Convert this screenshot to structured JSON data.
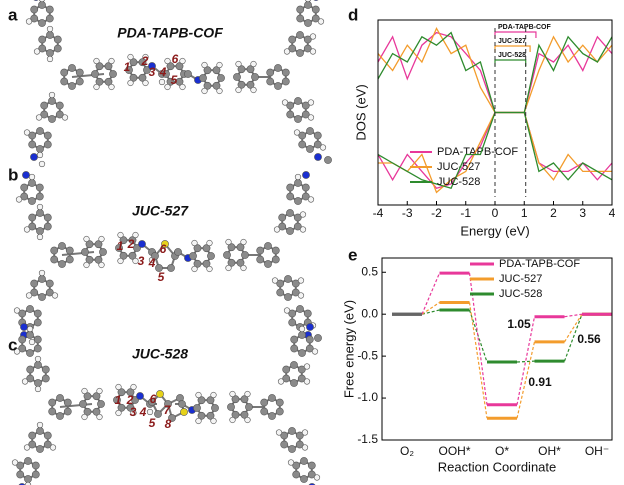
{
  "panels": [
    {
      "letter": "a",
      "title": "PDA-TAPB-COF",
      "atom_labels": [
        "1",
        "2",
        "3",
        "4",
        "5",
        "6"
      ]
    },
    {
      "letter": "b",
      "title": "JUC-527",
      "atom_labels": [
        "1",
        "2",
        "3",
        "4",
        "5",
        "6"
      ]
    },
    {
      "letter": "c",
      "title": "JUC-528",
      "atom_labels": [
        "1",
        "2",
        "3",
        "4",
        "5",
        "6",
        "7",
        "8"
      ]
    }
  ],
  "chart_data": [
    {
      "type": "line",
      "panel": "d",
      "xlabel": "Energy (eV)",
      "ylabel": "DOS (eV)",
      "x": [
        -4,
        -3.5,
        -3,
        -2.5,
        -2,
        -1.5,
        -1,
        -0.5,
        0,
        0.5,
        1,
        1.5,
        2,
        2.5,
        3,
        3.5,
        4
      ],
      "xlim": [
        -4,
        4
      ],
      "xticks": [
        -4,
        -3,
        -2,
        -1,
        0,
        1,
        2,
        3,
        4
      ],
      "ylim": [
        -1.1,
        1.1
      ],
      "series": [
        {
          "name": "PDA-TAPB-COF",
          "color": "#e8389a",
          "values": [
            0.6,
            0.9,
            0.4,
            0.8,
            0.95,
            0.9,
            0.7,
            0.5,
            0,
            0,
            0,
            0.7,
            0.6,
            0.8,
            0.5,
            0.9,
            0.7
          ],
          "values_down": [
            -0.5,
            -0.8,
            -0.5,
            -0.7,
            -0.9,
            -0.85,
            -0.6,
            -0.4,
            0,
            0,
            0,
            -0.6,
            -0.7,
            -0.7,
            -0.6,
            -0.8,
            -0.6
          ]
        },
        {
          "name": "JUC-527",
          "color": "#f39c2c",
          "values": [
            0.7,
            0.5,
            0.8,
            0.6,
            1.0,
            0.7,
            0.8,
            0.3,
            0,
            0,
            0,
            0.5,
            0.9,
            0.6,
            0.8,
            0.6,
            0.8
          ],
          "values_down": [
            -0.6,
            -0.6,
            -0.7,
            -0.5,
            -0.95,
            -0.8,
            -0.7,
            -0.35,
            0,
            0,
            0,
            -0.6,
            -0.8,
            -0.5,
            -0.7,
            -0.7,
            -0.7
          ]
        },
        {
          "name": "JUC-528",
          "color": "#2e8b2e",
          "values": [
            0.4,
            0.7,
            0.6,
            0.9,
            0.8,
            0.95,
            0.5,
            0.6,
            0,
            0,
            0,
            0.8,
            0.5,
            0.9,
            0.7,
            0.6,
            0.9
          ],
          "values_down": [
            -0.5,
            -0.6,
            -0.7,
            -0.8,
            -0.85,
            -0.9,
            -0.5,
            -0.5,
            0,
            0,
            0,
            -0.7,
            -0.6,
            -0.8,
            -0.6,
            -0.7,
            -0.8
          ]
        }
      ],
      "gap_annotations": [
        {
          "label": "PDA-TAPB-COF",
          "start": 0,
          "end": 1.4,
          "color": "#e8389a"
        },
        {
          "label": "JUC-527",
          "start": 0,
          "end": 1.2,
          "color": "#f39c2c"
        },
        {
          "label": "JUC-528",
          "start": 0,
          "end": 1.05,
          "color": "#2e8b2e"
        }
      ]
    },
    {
      "type": "energy_profile",
      "panel": "e",
      "xlabel": "Reaction Coordinate",
      "ylabel": "Free energy (eV)",
      "categories": [
        "O₂",
        "OOH*",
        "O*",
        "OH*",
        "OH⁻"
      ],
      "ylim": [
        -1.5,
        0.67
      ],
      "yticks": [
        0.5,
        {
          "value": 0,
          "label": "0.0"
        },
        -0.5,
        {
          "value": -1,
          "label": "-1.0"
        },
        -1.5
      ],
      "series": [
        {
          "name": "PDA-TAPB-COF",
          "color": "#e8389a",
          "values": [
            0,
            0.49,
            -1.08,
            -0.03,
            0
          ]
        },
        {
          "name": "JUC-527",
          "color": "#f39c2c",
          "values": [
            0,
            0.14,
            -1.24,
            -0.33,
            0
          ]
        },
        {
          "name": "JUC-528",
          "color": "#2e8b2e",
          "values": [
            0,
            0.05,
            -0.57,
            -0.56,
            0
          ]
        }
      ],
      "annotations": [
        {
          "text": "1.05",
          "color": "#e8389a"
        },
        {
          "text": "0.91",
          "color": "#f39c2c"
        },
        {
          "text": "0.56",
          "color": "#2e8b2e"
        }
      ]
    }
  ]
}
